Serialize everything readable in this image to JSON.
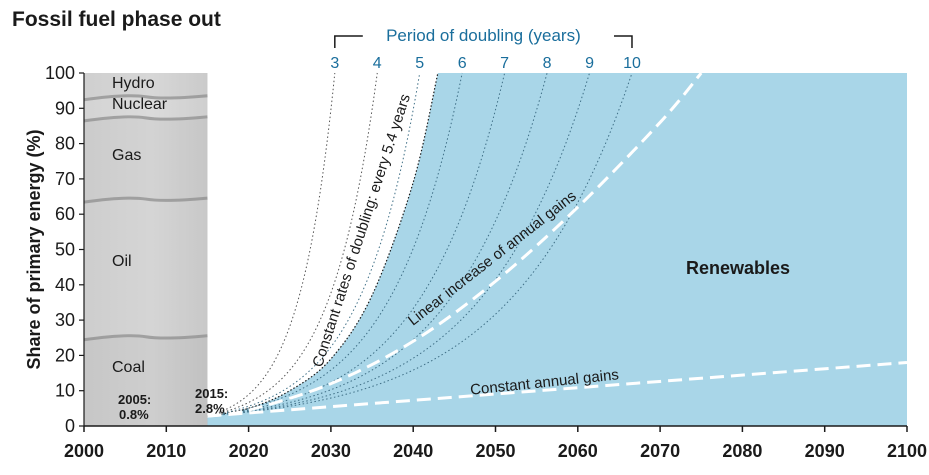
{
  "chart_data": {
    "type": "area",
    "title": "Fossil fuel phase out",
    "xlabel": "",
    "ylabel": "Share of primary energy (%)",
    "xlim": [
      2000,
      2100
    ],
    "ylim": [
      0,
      100
    ],
    "x_ticks": [
      "2000",
      "2010",
      "2020",
      "2030",
      "2040",
      "2050",
      "2060",
      "2070",
      "2080",
      "2090",
      "2100"
    ],
    "y_ticks": [
      "0",
      "10",
      "20",
      "30",
      "40",
      "50",
      "60",
      "70",
      "80",
      "90",
      "100"
    ],
    "grid": false,
    "historical_mix": {
      "years": [
        2000,
        2015
      ],
      "bands": [
        {
          "name": "Coal",
          "from": 0,
          "to": 25
        },
        {
          "name": "Oil",
          "from": 25,
          "to": 64
        },
        {
          "name": "Gas",
          "from": 64,
          "to": 87
        },
        {
          "name": "Nuclear",
          "from": 87,
          "to": 93
        },
        {
          "name": "Hydro",
          "from": 93,
          "to": 100
        }
      ]
    },
    "renewables_label": "Renewables",
    "historical_points": [
      {
        "year": 2005,
        "label": "2005:",
        "value_label": "0.8%",
        "value": 0.8
      },
      {
        "year": 2015,
        "label": "2015:",
        "value_label": "2.8%",
        "value": 2.8
      }
    ],
    "doubling_periods": {
      "title": "Period of doubling (years)",
      "periods": [
        3,
        4,
        5,
        6,
        7,
        8,
        9,
        10
      ],
      "labels": [
        "3",
        "4",
        "5",
        "6",
        "7",
        "8",
        "9",
        "10"
      ],
      "start_year": 2015,
      "start_value": 2.8
    },
    "series": [
      {
        "name": "Constant rates of doubling: every 5.4 years",
        "points": [
          [
            2015,
            2.8
          ],
          [
            2020,
            5.0
          ],
          [
            2025,
            10.0
          ],
          [
            2030,
            19.0
          ],
          [
            2035,
            37.0
          ],
          [
            2040,
            69.0
          ],
          [
            2043,
            100.0
          ]
        ]
      },
      {
        "name": "Linear increase of annual gains",
        "points": [
          [
            2015,
            2.8
          ],
          [
            2020,
            4.5
          ],
          [
            2030,
            12.0
          ],
          [
            2040,
            24.0
          ],
          [
            2050,
            41.0
          ],
          [
            2060,
            62.0
          ],
          [
            2070,
            86.0
          ],
          [
            2075,
            100.0
          ]
        ]
      },
      {
        "name": "Constant annual gains",
        "points": [
          [
            2015,
            2.8
          ],
          [
            2100,
            18.0
          ]
        ]
      }
    ]
  }
}
